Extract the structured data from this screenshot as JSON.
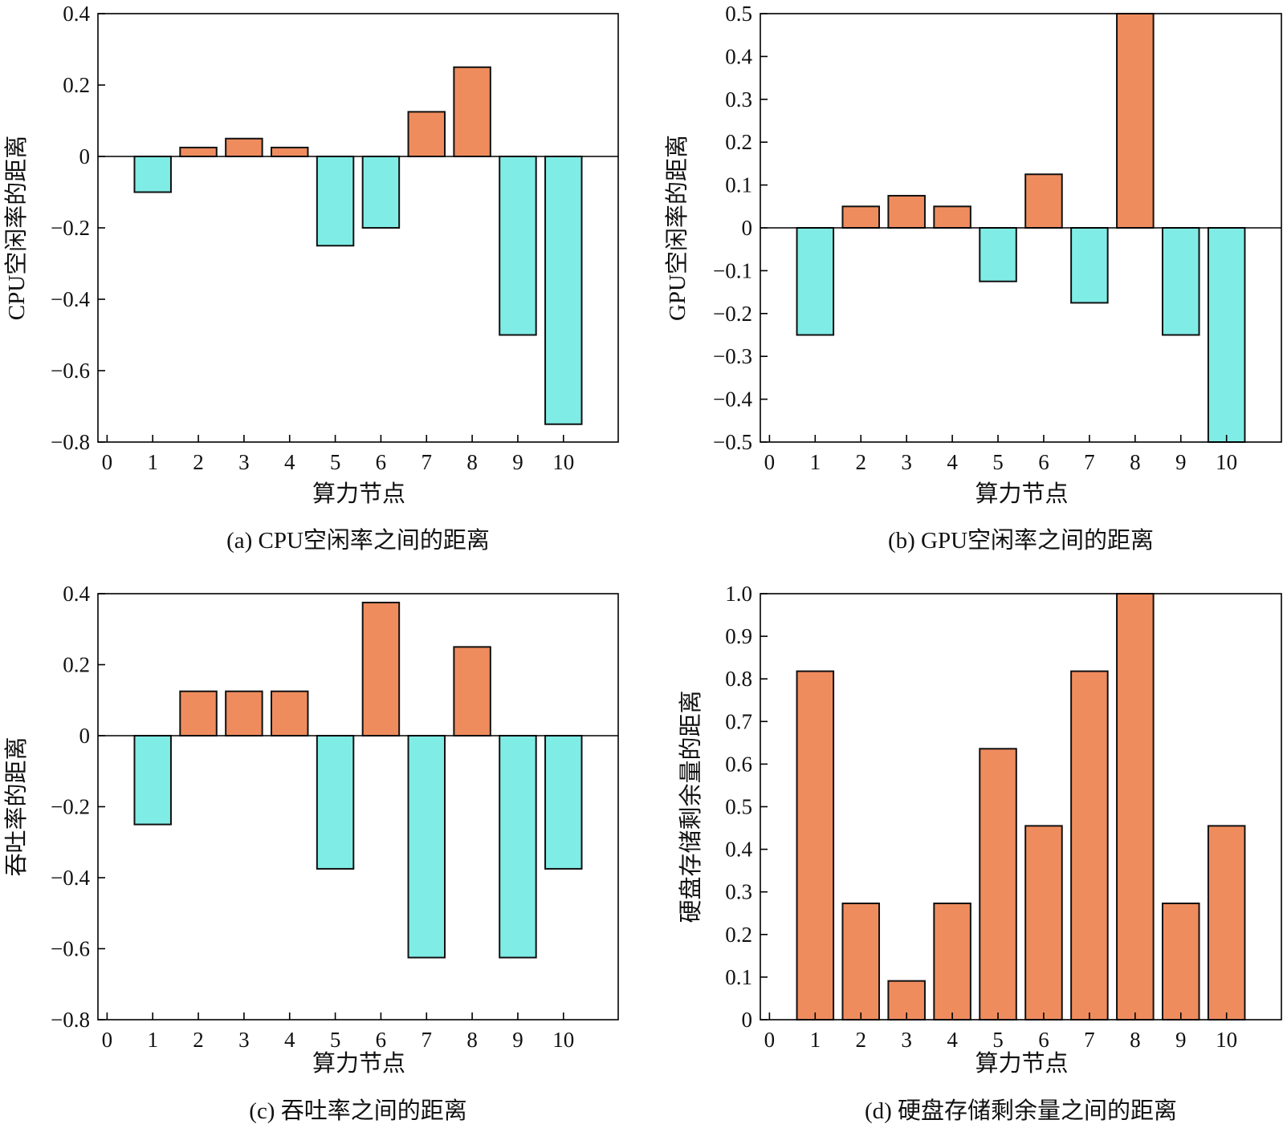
{
  "colors": {
    "positive": "#ef8c5e",
    "negative": "#80ece6",
    "edge": "#111111"
  },
  "chart_data": [
    {
      "type": "bar",
      "caption": "(a) CPU空闲率之间的距离",
      "xlabel": "算力节点",
      "ylabel": "CPU空闲率的距离",
      "x_ticks": [
        "0",
        "1",
        "2",
        "3",
        "4",
        "5",
        "6",
        "7",
        "8",
        "9",
        "10"
      ],
      "y_ticks": [
        "0.4",
        "0.2",
        "0",
        "−0.2",
        "−0.4",
        "−0.6",
        "−0.8"
      ],
      "xlim": [
        -0.2,
        11.2
      ],
      "ylim": [
        -0.8,
        0.4
      ],
      "categories": [
        1,
        2,
        3,
        4,
        5,
        6,
        7,
        8,
        9,
        10
      ],
      "values": [
        -0.1,
        0.025,
        0.05,
        0.025,
        -0.25,
        -0.2,
        0.125,
        0.25,
        -0.5,
        -0.75
      ],
      "zero_line": true,
      "grid": false,
      "legend": "none"
    },
    {
      "type": "bar",
      "caption": "(b) GPU空闲率之间的距离",
      "xlabel": "算力节点",
      "ylabel": "GPU空闲率的距离",
      "x_ticks": [
        "0",
        "1",
        "2",
        "3",
        "4",
        "5",
        "6",
        "7",
        "8",
        "9",
        "10"
      ],
      "y_ticks": [
        "0.5",
        "0.4",
        "0.3",
        "0.2",
        "0.1",
        "0",
        "−0.1",
        "−0.2",
        "−0.3",
        "−0.4",
        "−0.5"
      ],
      "xlim": [
        -0.2,
        11.2
      ],
      "ylim": [
        -0.5,
        0.5
      ],
      "categories": [
        1,
        2,
        3,
        4,
        5,
        6,
        7,
        8,
        9,
        10
      ],
      "values": [
        -0.25,
        0.05,
        0.075,
        0.05,
        -0.125,
        0.125,
        -0.175,
        0.5,
        -0.25,
        -0.5
      ],
      "zero_line": true,
      "grid": false,
      "legend": "none"
    },
    {
      "type": "bar",
      "caption": "(c) 吞吐率之间的距离",
      "xlabel": "算力节点",
      "ylabel": "吞吐率的距离",
      "x_ticks": [
        "0",
        "1",
        "2",
        "3",
        "4",
        "5",
        "6",
        "7",
        "8",
        "9",
        "10"
      ],
      "y_ticks": [
        "0.4",
        "0.2",
        "0",
        "−0.2",
        "−0.4",
        "−0.6",
        "−0.8"
      ],
      "xlim": [
        -0.2,
        11.2
      ],
      "ylim": [
        -0.8,
        0.4
      ],
      "categories": [
        1,
        2,
        3,
        4,
        5,
        6,
        7,
        8,
        9,
        10
      ],
      "values": [
        -0.25,
        0.125,
        0.125,
        0.125,
        -0.375,
        0.375,
        -0.625,
        0.25,
        -0.625,
        -0.375
      ],
      "zero_line": true,
      "grid": false,
      "legend": "none"
    },
    {
      "type": "bar",
      "caption": "(d) 硬盘存储剩余量之间的距离",
      "xlabel": "算力节点",
      "ylabel": "硬盘存储剩余量的距离",
      "x_ticks": [
        "0",
        "1",
        "2",
        "3",
        "4",
        "5",
        "6",
        "7",
        "8",
        "9",
        "10"
      ],
      "y_ticks": [
        "1.0",
        "0.9",
        "0.8",
        "0.7",
        "0.6",
        "0.5",
        "0.4",
        "0.3",
        "0.2",
        "0.1",
        "0"
      ],
      "xlim": [
        -0.2,
        11.2
      ],
      "ylim": [
        0,
        1.0
      ],
      "categories": [
        1,
        2,
        3,
        4,
        5,
        6,
        7,
        8,
        9,
        10
      ],
      "values": [
        0.818,
        0.273,
        0.091,
        0.273,
        0.636,
        0.455,
        0.818,
        1.0,
        0.273,
        0.455
      ],
      "zero_line": false,
      "grid": false,
      "legend": "none"
    }
  ]
}
